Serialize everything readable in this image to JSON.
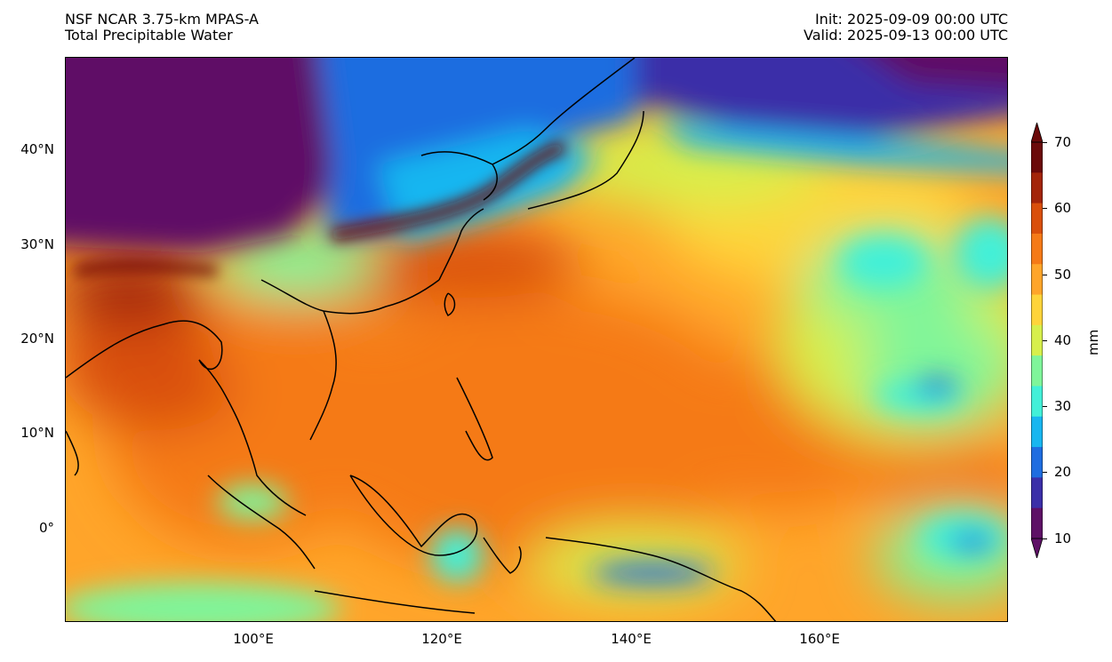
{
  "header": {
    "model": "NSF NCAR 3.75-km MPAS-A",
    "field": "Total Precipitable Water",
    "init": "Init: 2025-09-09 00:00 UTC",
    "valid": "Valid: 2025-09-13 00:00 UTC"
  },
  "axes": {
    "lat_labels": [
      "40°N",
      "30°N",
      "20°N",
      "10°N",
      "0°"
    ],
    "lon_labels": [
      "100°E",
      "120°E",
      "140°E",
      "160°E"
    ]
  },
  "colorbar": {
    "unit": "mm",
    "ticks": [
      "70",
      "60",
      "50",
      "40",
      "30",
      "20",
      "10"
    ],
    "min": 10,
    "max": 70,
    "extend": "both",
    "colormap": [
      "#5e1066",
      "#3b2fa8",
      "#1f6de0",
      "#18b6f0",
      "#42f0d8",
      "#7ff59a",
      "#d7ef4b",
      "#ffd43a",
      "#ffa52a",
      "#f57a17",
      "#d94f0b",
      "#a3250a",
      "#6b0a0a"
    ]
  },
  "map": {
    "extent_lon": [
      80,
      180
    ],
    "extent_lat": [
      -10,
      50
    ]
  }
}
